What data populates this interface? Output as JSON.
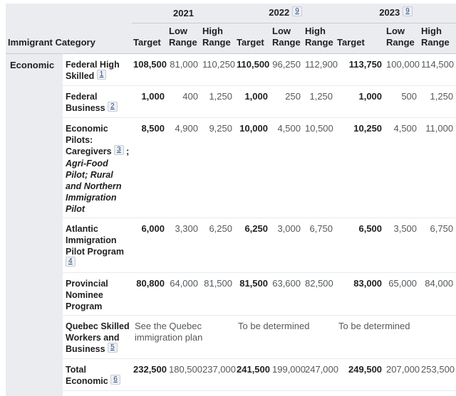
{
  "table": {
    "category_header": "Immigrant Category",
    "years": [
      {
        "label": "2021",
        "ref": null
      },
      {
        "label": "2022",
        "ref": "9"
      },
      {
        "label": "2023",
        "ref": "9"
      }
    ],
    "sub_columns": [
      "Target",
      "Low Range",
      "High Range"
    ],
    "group": {
      "label": "Economic"
    },
    "rows": [
      {
        "category": [
          {
            "t": "Federal High Skilled",
            "s": "b"
          },
          {
            "t": "1",
            "s": "fn"
          }
        ],
        "values": [
          "108,500",
          "81,000",
          "110,250",
          "110,500",
          "96,250",
          "112,900",
          "113,750",
          "100,000",
          "114,500"
        ]
      },
      {
        "category": [
          {
            "t": "Federal Business",
            "s": "b"
          },
          {
            "t": "2",
            "s": "fn"
          }
        ],
        "values": [
          "1,000",
          "400",
          "1,250",
          "1,000",
          "250",
          "1,250",
          "1,000",
          "500",
          "1,250"
        ]
      },
      {
        "category": [
          {
            "t": "Economic Pilots: Caregivers",
            "s": "b"
          },
          {
            "t": "3",
            "s": "fn"
          },
          {
            "t": ";",
            "s": "b"
          },
          {
            "t": "Agri-Food Pilot; Rural and Northern Immigration Pilot",
            "s": "bi"
          }
        ],
        "values": [
          "8,500",
          "4,900",
          "9,250",
          "10,000",
          "4,500",
          "10,500",
          "10,250",
          "4,500",
          "11,000"
        ]
      },
      {
        "category": [
          {
            "t": "Atlantic Immigration Pilot Program",
            "s": "b"
          },
          {
            "t": "4",
            "s": "fn"
          }
        ],
        "values": [
          "6,000",
          "3,300",
          "6,250",
          "6,250",
          "3,000",
          "6,750",
          "6,500",
          "3,500",
          "6,750"
        ]
      },
      {
        "category": [
          {
            "t": "Provincial Nominee Program",
            "s": "b"
          }
        ],
        "values": [
          "80,800",
          "64,000",
          "81,500",
          "81,500",
          "63,600",
          "82,500",
          "83,000",
          "65,000",
          "84,000"
        ]
      },
      {
        "category": [
          {
            "t": "Quebec Skilled Workers and Business",
            "s": "b"
          },
          {
            "t": "5",
            "s": "fn"
          }
        ],
        "spans": [
          "See the Quebec immigration plan",
          "To be determined",
          "To be determined"
        ]
      },
      {
        "category": [
          {
            "t": "Total Economic",
            "s": "b"
          },
          {
            "t": "6",
            "s": "fn"
          }
        ],
        "values": [
          "232,500",
          "180,500",
          "237,000",
          "241,500",
          "199,000",
          "247,000",
          "249,500",
          "207,000",
          "253,500"
        ]
      }
    ]
  },
  "colors": {
    "header_bg": "#eaecf0",
    "row_bg": "#ffffff",
    "text_strong": "#202122",
    "text_muted": "#54595d",
    "divider_strong": "#c8ccd1",
    "divider_light": "#e7eaee",
    "footnote_link": "#2a4b8d",
    "footnote_box_bg": "#eef0f2",
    "footnote_box_border": "#c9cdd3"
  }
}
